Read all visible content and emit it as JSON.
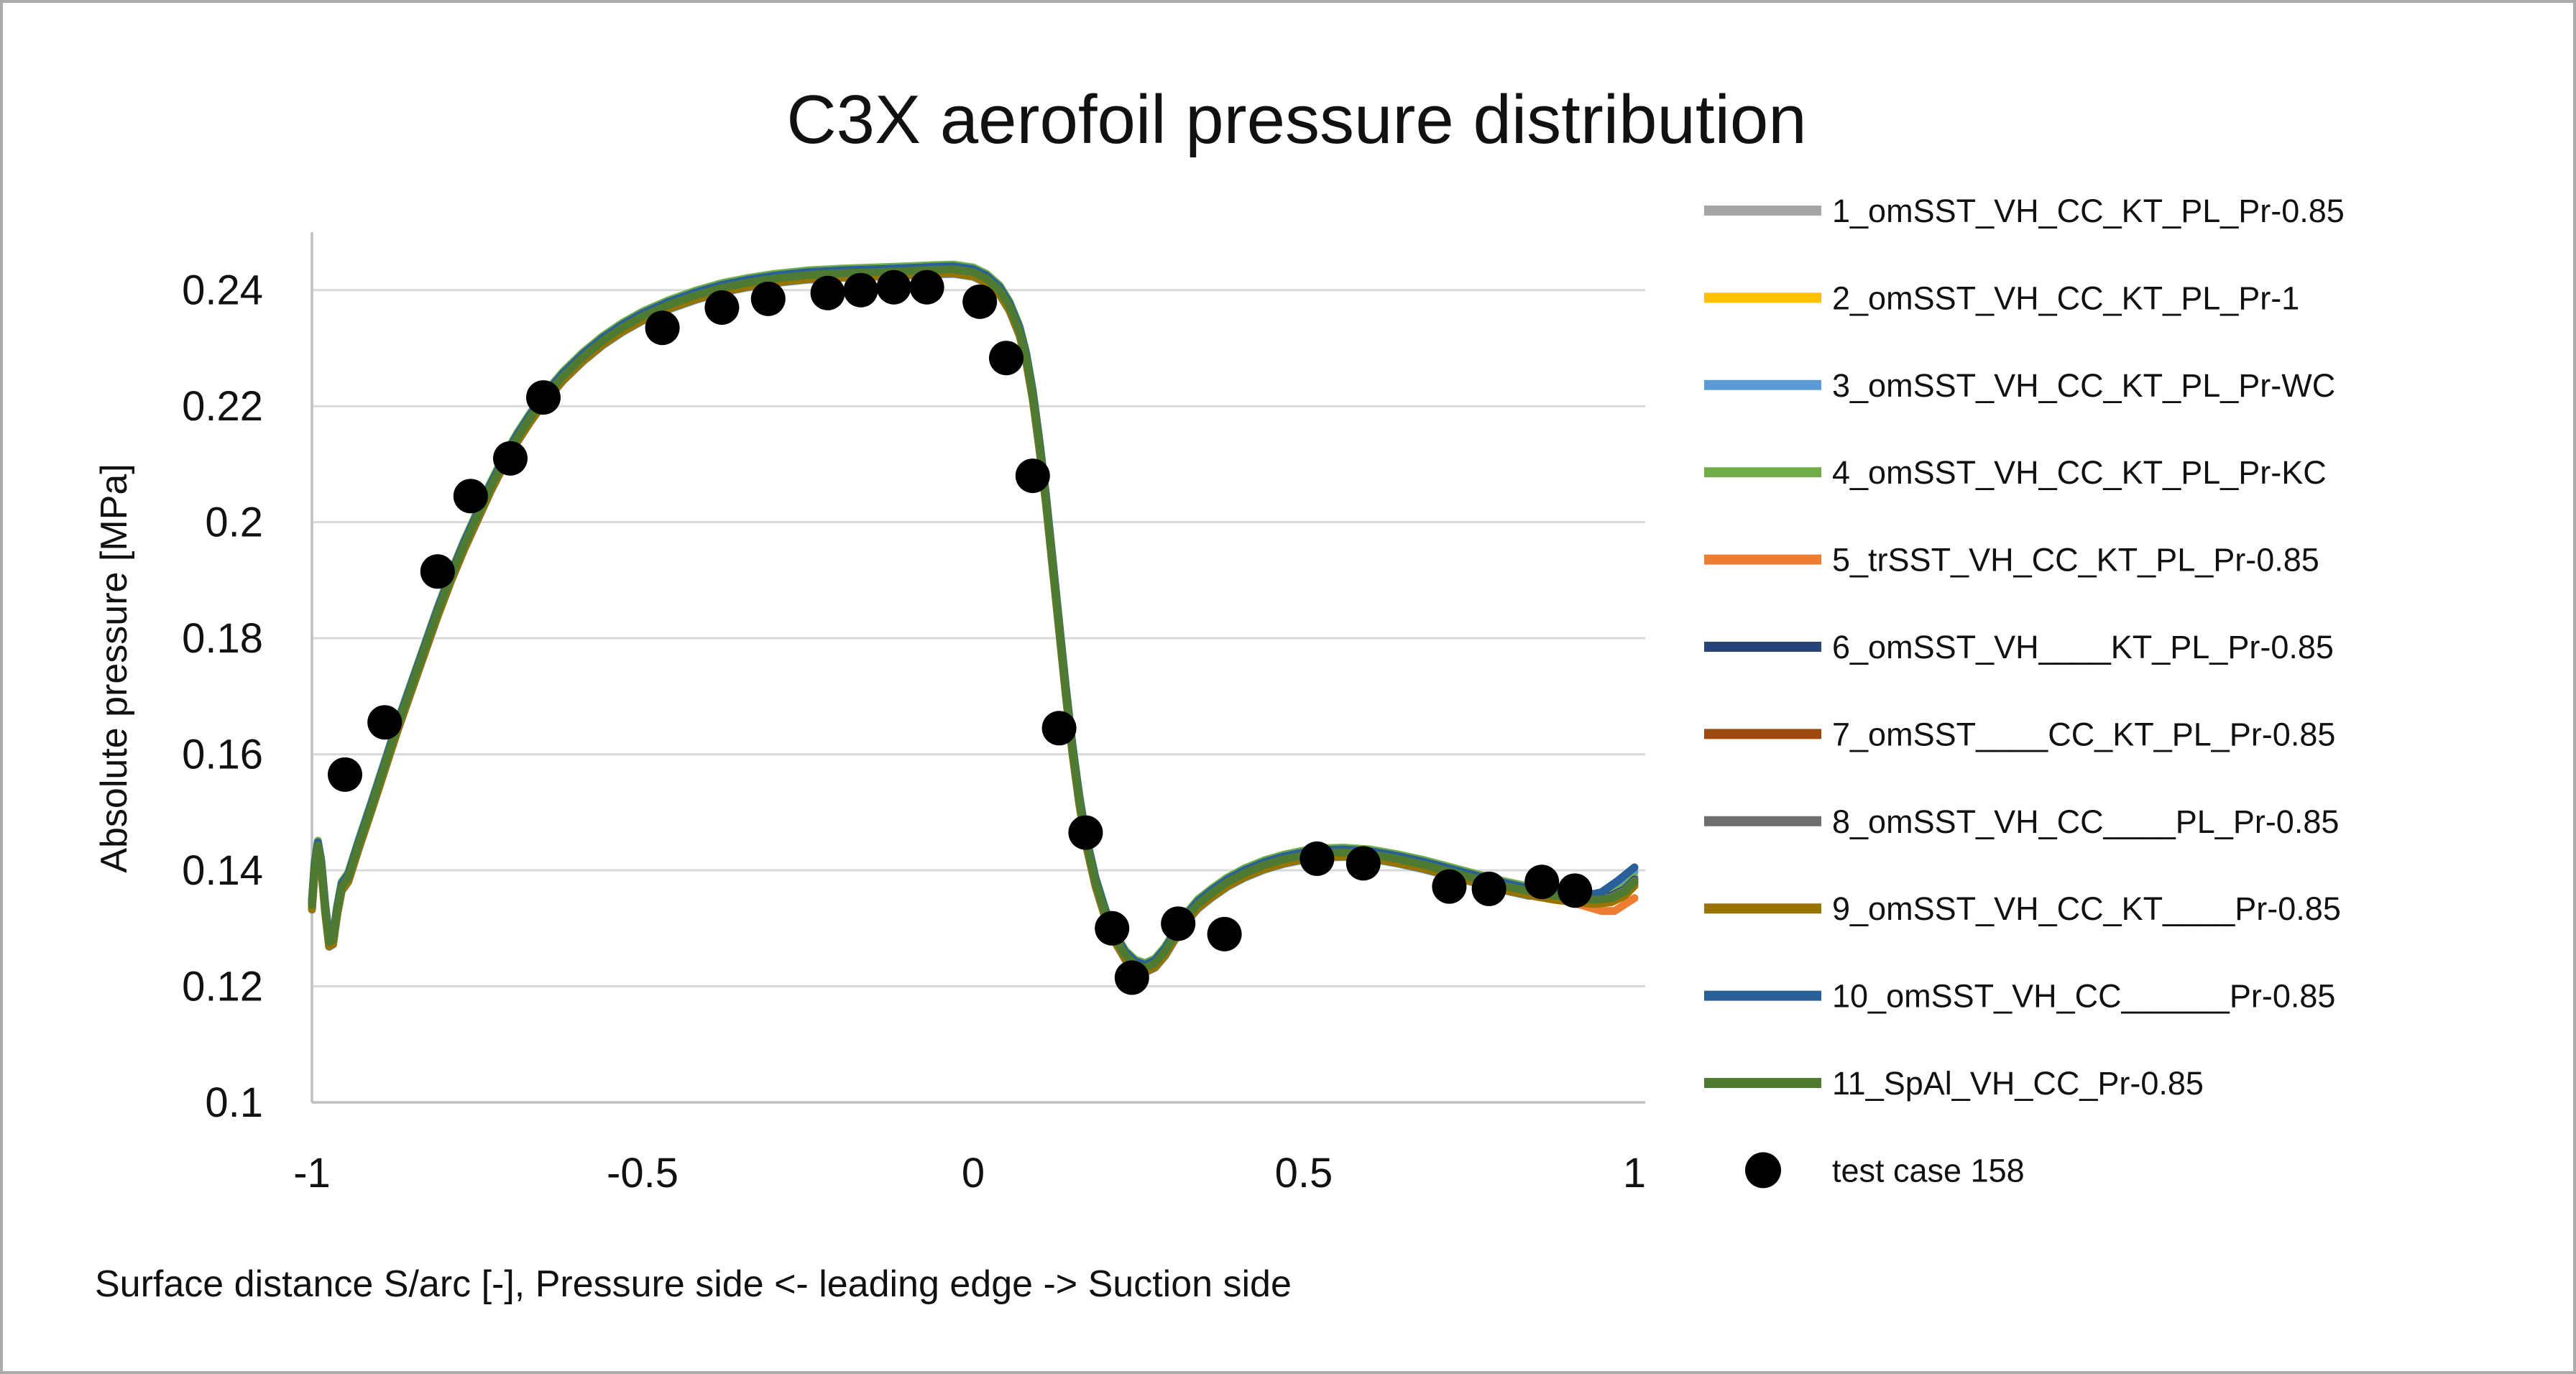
{
  "frame": {
    "background": "#FFFFFF",
    "border_color": "#ABABAB"
  },
  "chart_data": {
    "type": "line",
    "title": "C3X aerofoil pressure distribution",
    "xlabel": "Surface distance S/arc [-], Pressure side <- leading edge -> Suction side",
    "ylabel": "Absolute pressure [MPa]",
    "xlim": [
      -1,
      1
    ],
    "ylim": [
      0.1,
      0.25
    ],
    "grid": "horizontal-only",
    "legend_position": "right",
    "colors": {
      "grid": "#D9D9D9",
      "axis": "#BFBFBF",
      "text": "#111111"
    },
    "y_ticks": [
      {
        "v": 0.24,
        "label": "0.24"
      },
      {
        "v": 0.22,
        "label": "0.22"
      },
      {
        "v": 0.2,
        "label": "0.2"
      },
      {
        "v": 0.18,
        "label": "0.18"
      },
      {
        "v": 0.16,
        "label": "0.16"
      },
      {
        "v": 0.14,
        "label": "0.14"
      },
      {
        "v": 0.12,
        "label": "0.12"
      },
      {
        "v": 0.1,
        "label": "0.1"
      }
    ],
    "x_ticks": [
      {
        "v": -1,
        "label": "-1"
      },
      {
        "v": -0.5,
        "label": "-0.5"
      },
      {
        "v": 0,
        "label": "0"
      },
      {
        "v": 0.5,
        "label": "0.5"
      },
      {
        "v": 1,
        "label": "1"
      }
    ],
    "base_curve": [
      [
        -1,
        0.134
      ],
      [
        -0.996,
        0.1405
      ],
      [
        -0.991,
        0.1443
      ],
      [
        -0.986,
        0.141
      ],
      [
        -0.98,
        0.1335
      ],
      [
        -0.974,
        0.1276
      ],
      [
        -0.968,
        0.128
      ],
      [
        -0.962,
        0.133
      ],
      [
        -0.955,
        0.1372
      ],
      [
        -0.945,
        0.1388
      ],
      [
        -0.93,
        0.1442
      ],
      [
        -0.91,
        0.151
      ],
      [
        -0.89,
        0.158
      ],
      [
        -0.87,
        0.165
      ],
      [
        -0.85,
        0.1715
      ],
      [
        -0.83,
        0.178
      ],
      [
        -0.81,
        0.1845
      ],
      [
        -0.79,
        0.1905
      ],
      [
        -0.77,
        0.196
      ],
      [
        -0.75,
        0.201
      ],
      [
        -0.73,
        0.206
      ],
      [
        -0.71,
        0.2105
      ],
      [
        -0.69,
        0.2145
      ],
      [
        -0.67,
        0.218
      ],
      [
        -0.65,
        0.2212
      ],
      [
        -0.62,
        0.2252
      ],
      [
        -0.59,
        0.2285
      ],
      [
        -0.56,
        0.2313
      ],
      [
        -0.53,
        0.2336
      ],
      [
        -0.5,
        0.2355
      ],
      [
        -0.46,
        0.2375
      ],
      [
        -0.42,
        0.2391
      ],
      [
        -0.38,
        0.2404
      ],
      [
        -0.34,
        0.2413
      ],
      [
        -0.3,
        0.242
      ],
      [
        -0.25,
        0.2426
      ],
      [
        -0.2,
        0.2429
      ],
      [
        -0.15,
        0.2431
      ],
      [
        -0.1,
        0.2433
      ],
      [
        -0.06,
        0.2435
      ],
      [
        -0.03,
        0.2436
      ],
      [
        0,
        0.2431
      ],
      [
        0.02,
        0.242
      ],
      [
        0.04,
        0.24
      ],
      [
        0.055,
        0.2372
      ],
      [
        0.07,
        0.233
      ],
      [
        0.08,
        0.2285
      ],
      [
        0.09,
        0.222
      ],
      [
        0.1,
        0.2135
      ],
      [
        0.11,
        0.204
      ],
      [
        0.12,
        0.193
      ],
      [
        0.13,
        0.182
      ],
      [
        0.14,
        0.171
      ],
      [
        0.15,
        0.161
      ],
      [
        0.16,
        0.1525
      ],
      [
        0.17,
        0.1455
      ],
      [
        0.185,
        0.138
      ],
      [
        0.2,
        0.1325
      ],
      [
        0.215,
        0.1283
      ],
      [
        0.23,
        0.1254
      ],
      [
        0.245,
        0.1238
      ],
      [
        0.26,
        0.1232
      ],
      [
        0.275,
        0.124
      ],
      [
        0.29,
        0.126
      ],
      [
        0.305,
        0.1288
      ],
      [
        0.32,
        0.1315
      ],
      [
        0.34,
        0.1342
      ],
      [
        0.36,
        0.136
      ],
      [
        0.385,
        0.138
      ],
      [
        0.41,
        0.1395
      ],
      [
        0.44,
        0.1409
      ],
      [
        0.47,
        0.1419
      ],
      [
        0.5,
        0.1426
      ],
      [
        0.53,
        0.143
      ],
      [
        0.56,
        0.1431
      ],
      [
        0.6,
        0.1428
      ],
      [
        0.64,
        0.142
      ],
      [
        0.68,
        0.141
      ],
      [
        0.72,
        0.1398
      ],
      [
        0.76,
        0.1386
      ],
      [
        0.8,
        0.1374
      ],
      [
        0.84,
        0.1364
      ],
      [
        0.88,
        0.1356
      ],
      [
        0.91,
        0.1352
      ],
      [
        0.94,
        0.1349
      ],
      [
        0.965,
        0.1352
      ],
      [
        0.985,
        0.1363
      ],
      [
        1,
        0.138
      ]
    ],
    "series": [
      {
        "label": "1_omSST_VH_CC_KT_PL_Pr-0.85",
        "color": "#A5A5A5",
        "dy": 0.0006
      },
      {
        "label": "2_omSST_VH_CC_KT_PL_Pr-1",
        "color": "#FFC000",
        "dy": -0.0006
      },
      {
        "label": "3_omSST_VH_CC_KT_PL_Pr-WC",
        "color": "#5B9BD5",
        "dy": -0.0008,
        "tail": [
          [
            0.88,
            0.1358
          ],
          [
            0.92,
            0.1353
          ],
          [
            0.95,
            0.1356
          ],
          [
            0.975,
            0.1374
          ],
          [
            1,
            0.1397
          ]
        ]
      },
      {
        "label": "4_omSST_VH_CC_KT_PL_Pr-KC",
        "color": "#70AD47",
        "dy": 0.0008
      },
      {
        "label": "5_trSST_VH_CC_KT_PL_Pr-0.85",
        "color": "#ED7D31",
        "dy": -0.0004,
        "tail": [
          [
            0.88,
            0.1352
          ],
          [
            0.92,
            0.134
          ],
          [
            0.95,
            0.133
          ],
          [
            0.97,
            0.133
          ],
          [
            1,
            0.1352
          ]
        ]
      },
      {
        "label": "6_omSST_VH____KT_PL_Pr-0.85",
        "color": "#264478",
        "dy": 0.0004
      },
      {
        "label": "7_omSST____CC_KT_PL_Pr-0.85",
        "color": "#9E480E",
        "dy": -0.0002
      },
      {
        "label": "8_omSST_VH_CC____PL_Pr-0.85",
        "color": "#6E6E6E",
        "dy": 0.0002
      },
      {
        "label": "9_omSST_VH_CC_KT____Pr-0.85",
        "color": "#997300",
        "dy": -0.0007
      },
      {
        "label": "10_omSST_VH_CC______Pr-0.85",
        "color": "#2A6099",
        "dy": 0.0005,
        "tail": [
          [
            0.88,
            0.1357
          ],
          [
            0.92,
            0.1355
          ],
          [
            0.95,
            0.1362
          ],
          [
            0.975,
            0.1382
          ],
          [
            1,
            0.1405
          ]
        ]
      },
      {
        "label": "11_SpAl_VH_CC_Pr-0.85",
        "color": "#4E7A32",
        "dy": 0
      }
    ],
    "scatter": {
      "label": "test case 158",
      "color": "#000000",
      "marker": "circle",
      "points": [
        [
          -0.95,
          0.1565
        ],
        [
          -0.89,
          0.1655
        ],
        [
          -0.81,
          0.1915
        ],
        [
          -0.76,
          0.2045
        ],
        [
          -0.7,
          0.211
        ],
        [
          -0.65,
          0.2215
        ],
        [
          -0.47,
          0.2335
        ],
        [
          -0.38,
          0.237
        ],
        [
          -0.31,
          0.2385
        ],
        [
          -0.22,
          0.2395
        ],
        [
          -0.17,
          0.24
        ],
        [
          -0.12,
          0.2405
        ],
        [
          -0.07,
          0.2405
        ],
        [
          0.01,
          0.238
        ],
        [
          0.05,
          0.2283
        ],
        [
          0.09,
          0.208
        ],
        [
          0.13,
          0.1645
        ],
        [
          0.17,
          0.1465
        ],
        [
          0.21,
          0.13
        ],
        [
          0.24,
          0.1215
        ],
        [
          0.31,
          0.1308
        ],
        [
          0.38,
          0.129
        ],
        [
          0.52,
          0.142
        ],
        [
          0.59,
          0.1412
        ],
        [
          0.72,
          0.1372
        ],
        [
          0.78,
          0.1368
        ],
        [
          0.86,
          0.138
        ],
        [
          0.91,
          0.1365
        ]
      ]
    }
  }
}
